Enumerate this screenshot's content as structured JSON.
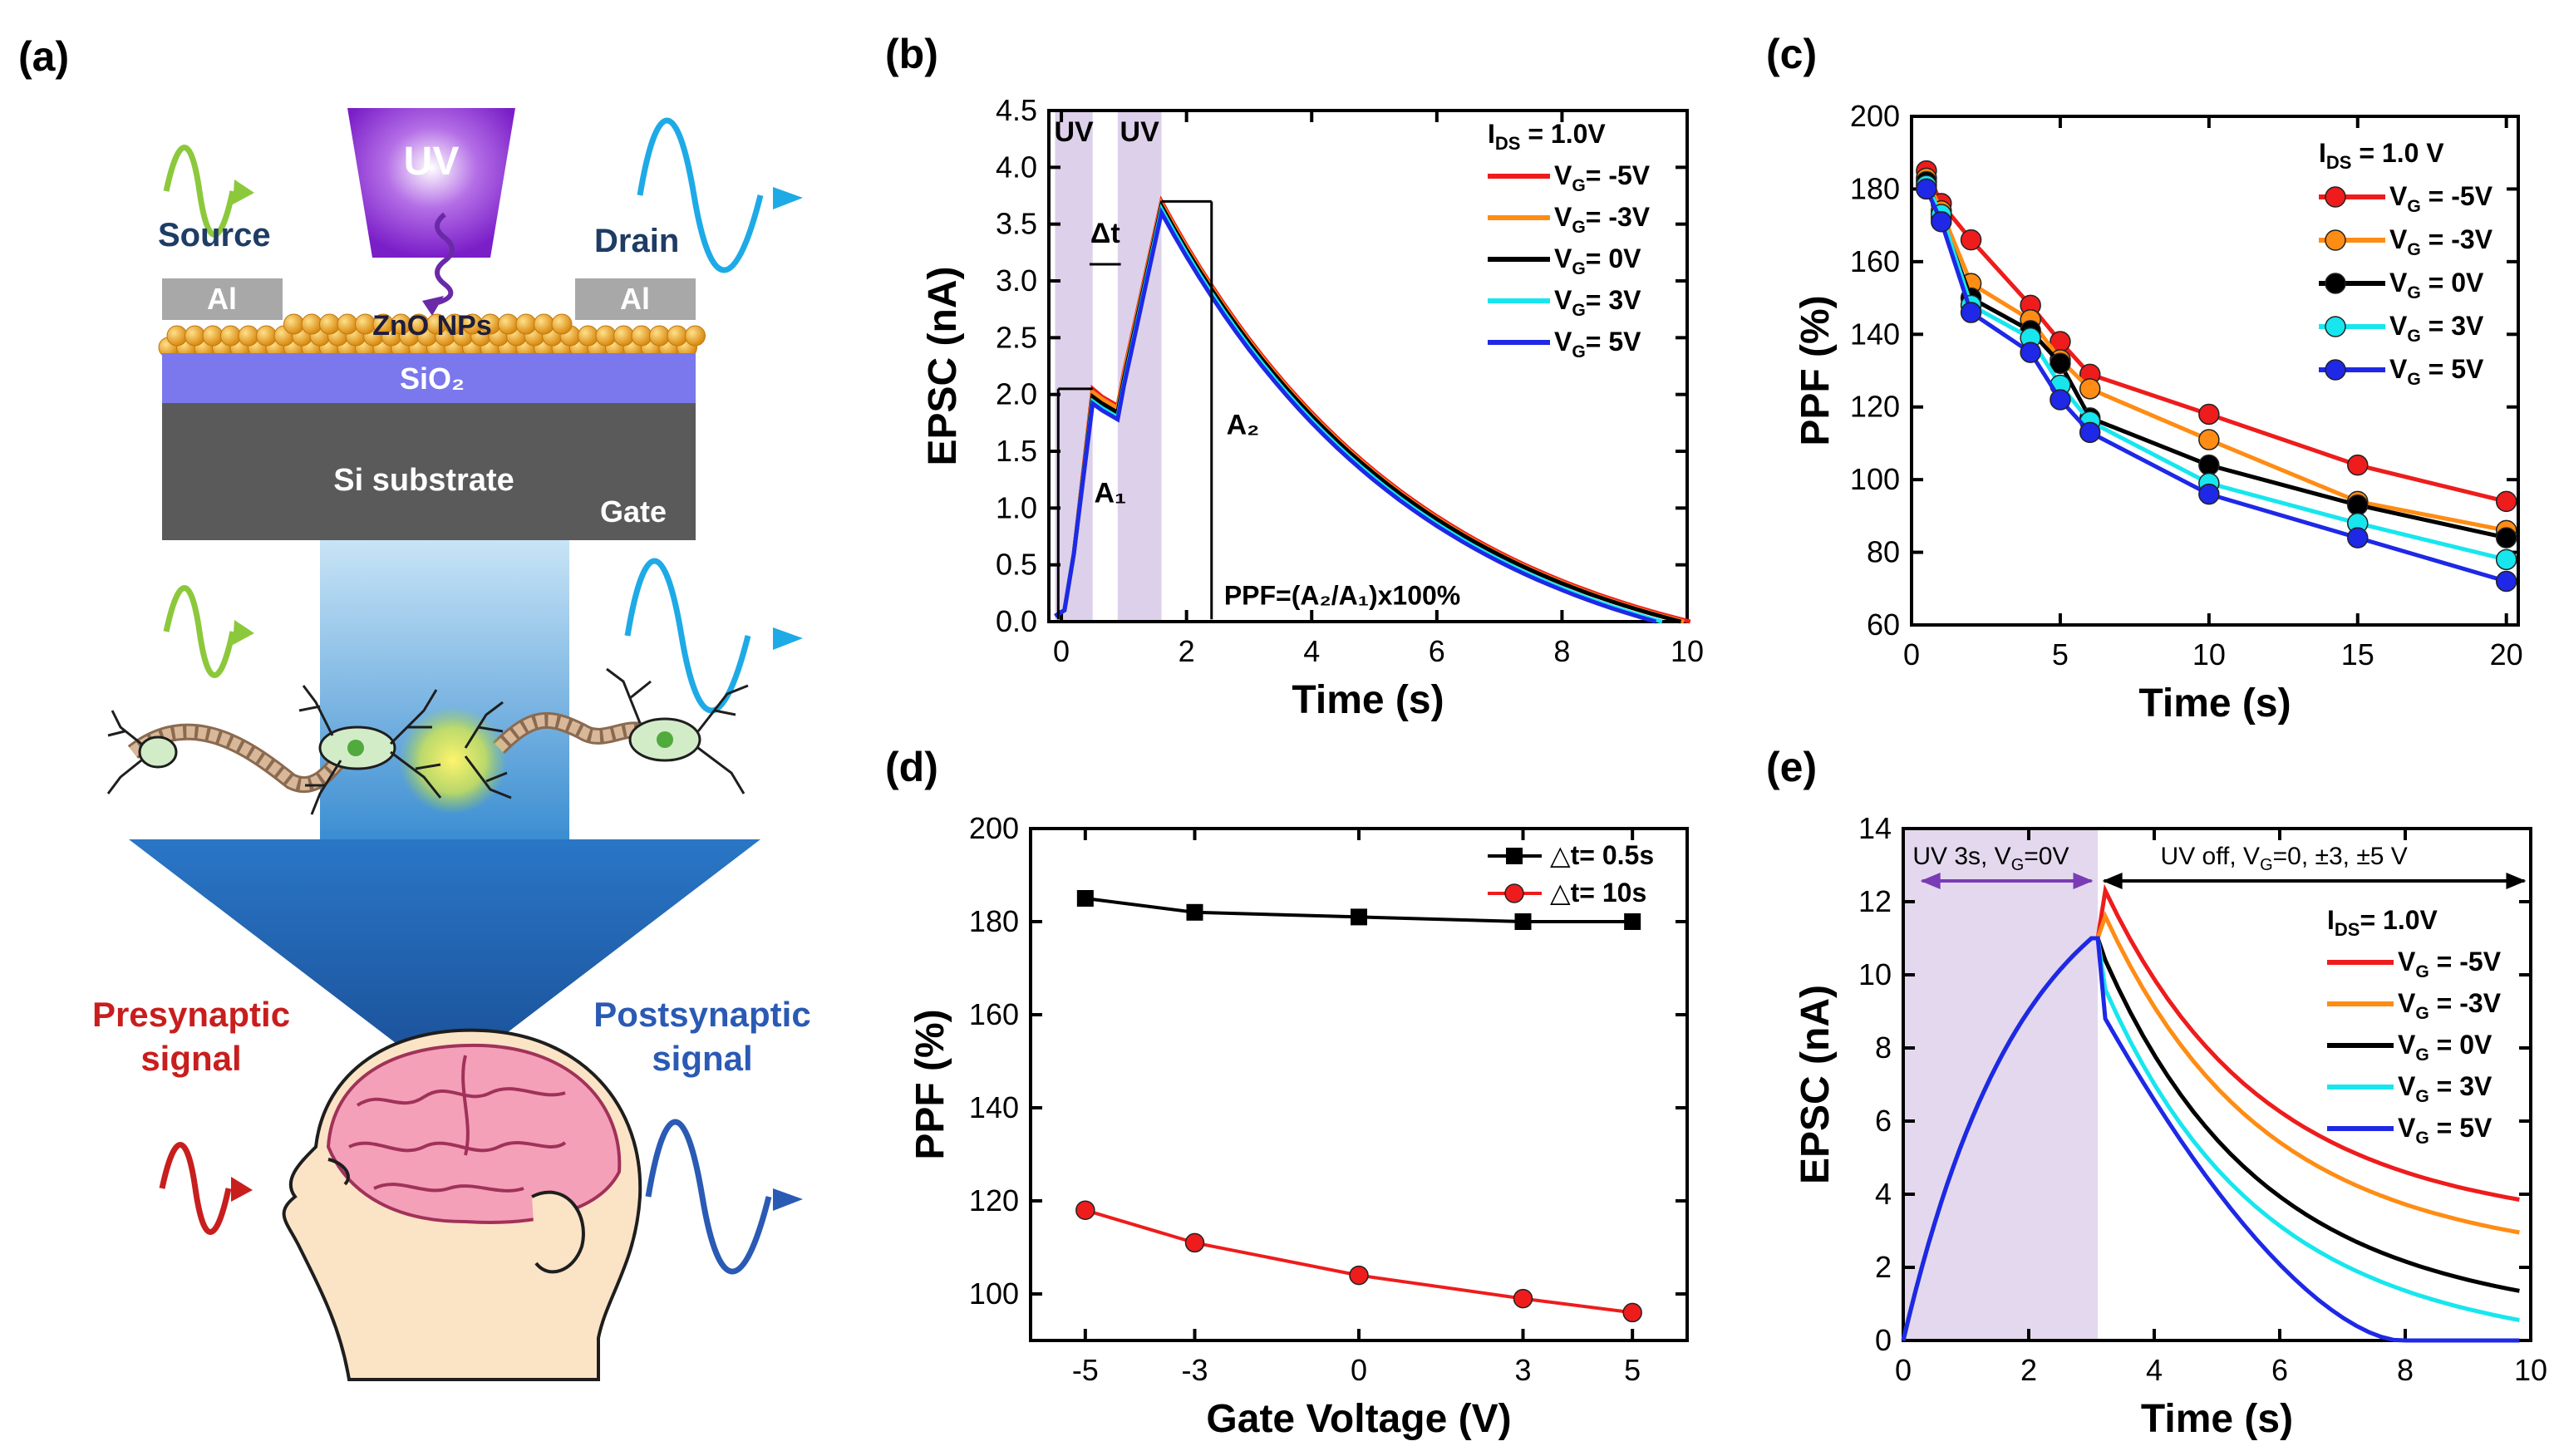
{
  "panels": {
    "a": "(a)",
    "b": "(b)",
    "c": "(c)",
    "d": "(d)",
    "e": "(e)"
  },
  "schematic": {
    "uv": "UV",
    "source": "Source",
    "drain": "Drain",
    "al_left": "Al",
    "al_right": "Al",
    "zno": "ZnO NPs",
    "sio2": "SiO₂",
    "si": "Si substrate",
    "gate": "Gate",
    "pre1": "Presynaptic",
    "pre2": "signal",
    "post1": "Postsynaptic",
    "post2": "signal"
  },
  "colors": {
    "m5": "#ee1c1c",
    "m3": "#ff8c14",
    "zero": "#000000",
    "p3": "#18e6ee",
    "p5": "#1e28e6",
    "uvband": "#ddd0ea",
    "uvshade": "#e4d8ee",
    "pre": "#c81e1e",
    "post": "#2a5ab4",
    "green": "#8cc83c",
    "cyan": "#1eaae6"
  },
  "chart_data": [
    {
      "id": "b",
      "type": "line",
      "xlabel": "Time (s)",
      "ylabel": "EPSC (nA)",
      "xlim": [
        -0.2,
        10
      ],
      "ylim": [
        0,
        4.5
      ],
      "xticks": [
        0,
        2,
        4,
        6,
        8,
        10
      ],
      "yticks": [
        0.0,
        0.5,
        1.0,
        1.5,
        2.0,
        2.5,
        3.0,
        3.5,
        4.0,
        4.5
      ],
      "xticklabels": [
        "0",
        "2",
        "4",
        "6",
        "8",
        "10"
      ],
      "yticklabels": [
        "0.0",
        "0.5",
        "1.0",
        "1.5",
        "2.0",
        "2.5",
        "3.0",
        "3.5",
        "4.0",
        "4.5"
      ],
      "legend_title": "I_DS = 1.0V",
      "annotations": {
        "uv1": "UV",
        "uv2": "UV",
        "dt": "Δt",
        "a1": "A₁",
        "a2": "A₂",
        "formula": "PPF=(A₂/A₁)x100%"
      },
      "series": [
        {
          "name": "V_G= -5V",
          "prefix": "V",
          "sub": "G",
          "suffix": "= -5V",
          "color": "#ee1c1c",
          "peak1": 2.05,
          "trough": 1.9,
          "peak2": 3.7,
          "end_t": 10.05
        },
        {
          "name": "V_G= -3V",
          "prefix": "V",
          "sub": "G",
          "suffix": "= -3V",
          "color": "#ff8c14",
          "peak1": 2.02,
          "trough": 1.88,
          "peak2": 3.68,
          "end_t": 9.95
        },
        {
          "name": "V_G= 0V",
          "prefix": "V",
          "sub": "G",
          "suffix": "= 0V",
          "color": "#000000",
          "peak1": 1.98,
          "trough": 1.84,
          "peak2": 3.66,
          "end_t": 9.9
        },
        {
          "name": "V_G= 3V",
          "prefix": "V",
          "sub": "G",
          "suffix": "= 3V",
          "color": "#18e6ee",
          "peak1": 1.94,
          "trough": 1.8,
          "peak2": 3.63,
          "end_t": 9.6
        },
        {
          "name": "V_G= 5V",
          "prefix": "V",
          "sub": "G",
          "suffix": "= 5V",
          "color": "#1e28e6",
          "peak1": 1.92,
          "trough": 1.78,
          "peak2": 3.6,
          "end_t": 9.5
        }
      ]
    },
    {
      "id": "c",
      "type": "line",
      "xlabel": "Time (s)",
      "ylabel": "PPF (%)",
      "xlim": [
        0,
        20.4
      ],
      "ylim": [
        60,
        200
      ],
      "xticks": [
        0,
        5,
        10,
        15,
        20
      ],
      "yticks": [
        60,
        80,
        100,
        120,
        140,
        160,
        180,
        200
      ],
      "xticklabels": [
        "0",
        "5",
        "10",
        "15",
        "20"
      ],
      "yticklabels": [
        "60",
        "80",
        "100",
        "120",
        "140",
        "160",
        "180",
        "200"
      ],
      "x": [
        0.5,
        1,
        2,
        4,
        5,
        6,
        10,
        15,
        20
      ],
      "legend_title": "I_DS = 1.0 V",
      "series": [
        {
          "name": "V_G = -5V",
          "prefix": "V",
          "sub": "G",
          "suffix": " = -5V",
          "color": "#ee1c1c",
          "values": [
            185,
            176,
            166,
            148,
            138,
            129,
            118,
            104,
            94
          ]
        },
        {
          "name": "V_G = -3V",
          "prefix": "V",
          "sub": "G",
          "suffix": " = -3V",
          "color": "#ff8c14",
          "values": [
            183,
            174,
            154,
            144,
            133,
            125,
            111,
            94,
            86
          ]
        },
        {
          "name": "V_G = 0V",
          "prefix": "V",
          "sub": "G",
          "suffix": " =  0V",
          "color": "#000000",
          "values": [
            182,
            172,
            150,
            141,
            132,
            117,
            104,
            93,
            84
          ]
        },
        {
          "name": "V_G = 3V",
          "prefix": "V",
          "sub": "G",
          "suffix": " =  3V",
          "color": "#18e6ee",
          "values": [
            181,
            173,
            148,
            139,
            126,
            116,
            99,
            88,
            78
          ]
        },
        {
          "name": "V_G = 5V",
          "prefix": "V",
          "sub": "G",
          "suffix": " =  5V",
          "color": "#1e28e6",
          "values": [
            180,
            171,
            146,
            135,
            122,
            113,
            96,
            84,
            72
          ]
        }
      ]
    },
    {
      "id": "d",
      "type": "line",
      "xlabel": "Gate Voltage (V)",
      "ylabel": "PPF (%)",
      "xlim": [
        -6,
        6
      ],
      "ylim": [
        90,
        200
      ],
      "xticks": [
        -5,
        -3,
        0,
        3,
        5
      ],
      "yticks": [
        100,
        120,
        140,
        160,
        180,
        200
      ],
      "xticklabels": [
        "-5",
        "-3",
        "0",
        "3",
        "5"
      ],
      "yticklabels": [
        "100",
        "120",
        "140",
        "160",
        "180",
        "200"
      ],
      "x": [
        -5,
        -3,
        0,
        3,
        5
      ],
      "series": [
        {
          "name": "△t= 0.5s",
          "label": "△t= 0.5s",
          "color": "#000000",
          "marker": "square",
          "values": [
            185,
            182,
            181,
            180,
            180
          ]
        },
        {
          "name": "△t= 10s",
          "label": "△t= 10s",
          "color": "#ee1c1c",
          "marker": "circle",
          "values": [
            118,
            111,
            104,
            99,
            96
          ]
        }
      ]
    },
    {
      "id": "e",
      "type": "line",
      "xlabel": "Time (s)",
      "ylabel": "EPSC (nA)",
      "xlim": [
        0,
        10
      ],
      "ylim": [
        0,
        14
      ],
      "xticks": [
        0,
        2,
        4,
        6,
        8,
        10
      ],
      "yticks": [
        0,
        2,
        4,
        6,
        8,
        10,
        12,
        14
      ],
      "xticklabels": [
        "0",
        "2",
        "4",
        "6",
        "8",
        "10"
      ],
      "yticklabels": [
        "0",
        "2",
        "4",
        "6",
        "8",
        "10",
        "12",
        "14"
      ],
      "legend_title": "I_DS= 1.0V",
      "annotations": {
        "uv_on": "UV 3s, V_G=0V",
        "uv_off": "UV off, V_G=0, ±3, ±5 V"
      },
      "uv_end": 3.1,
      "peak": 11.0,
      "series": [
        {
          "name": "V_G = -5V",
          "prefix": "V",
          "sub": "G",
          "suffix": " = -5V",
          "color": "#ee1c1c",
          "start": 12.3,
          "end_value": 3.8
        },
        {
          "name": "V_G = -3V",
          "prefix": "V",
          "sub": "G",
          "suffix": " = -3V",
          "color": "#ff8c14",
          "start": 11.6,
          "end_value": 2.9
        },
        {
          "name": "V_G = 0V",
          "prefix": "V",
          "sub": "G",
          "suffix": " =  0V",
          "color": "#000000",
          "start": 10.4,
          "end_value": 1.3
        },
        {
          "name": "V_G = 3V",
          "prefix": "V",
          "sub": "G",
          "suffix": " =  3V",
          "color": "#18e6ee",
          "start": 9.6,
          "end_value": 0.5
        },
        {
          "name": "V_G = 5V",
          "prefix": "V",
          "sub": "G",
          "suffix": " =  5V",
          "color": "#1e28e6",
          "start": 8.8,
          "end_value": 0.0
        }
      ]
    }
  ]
}
